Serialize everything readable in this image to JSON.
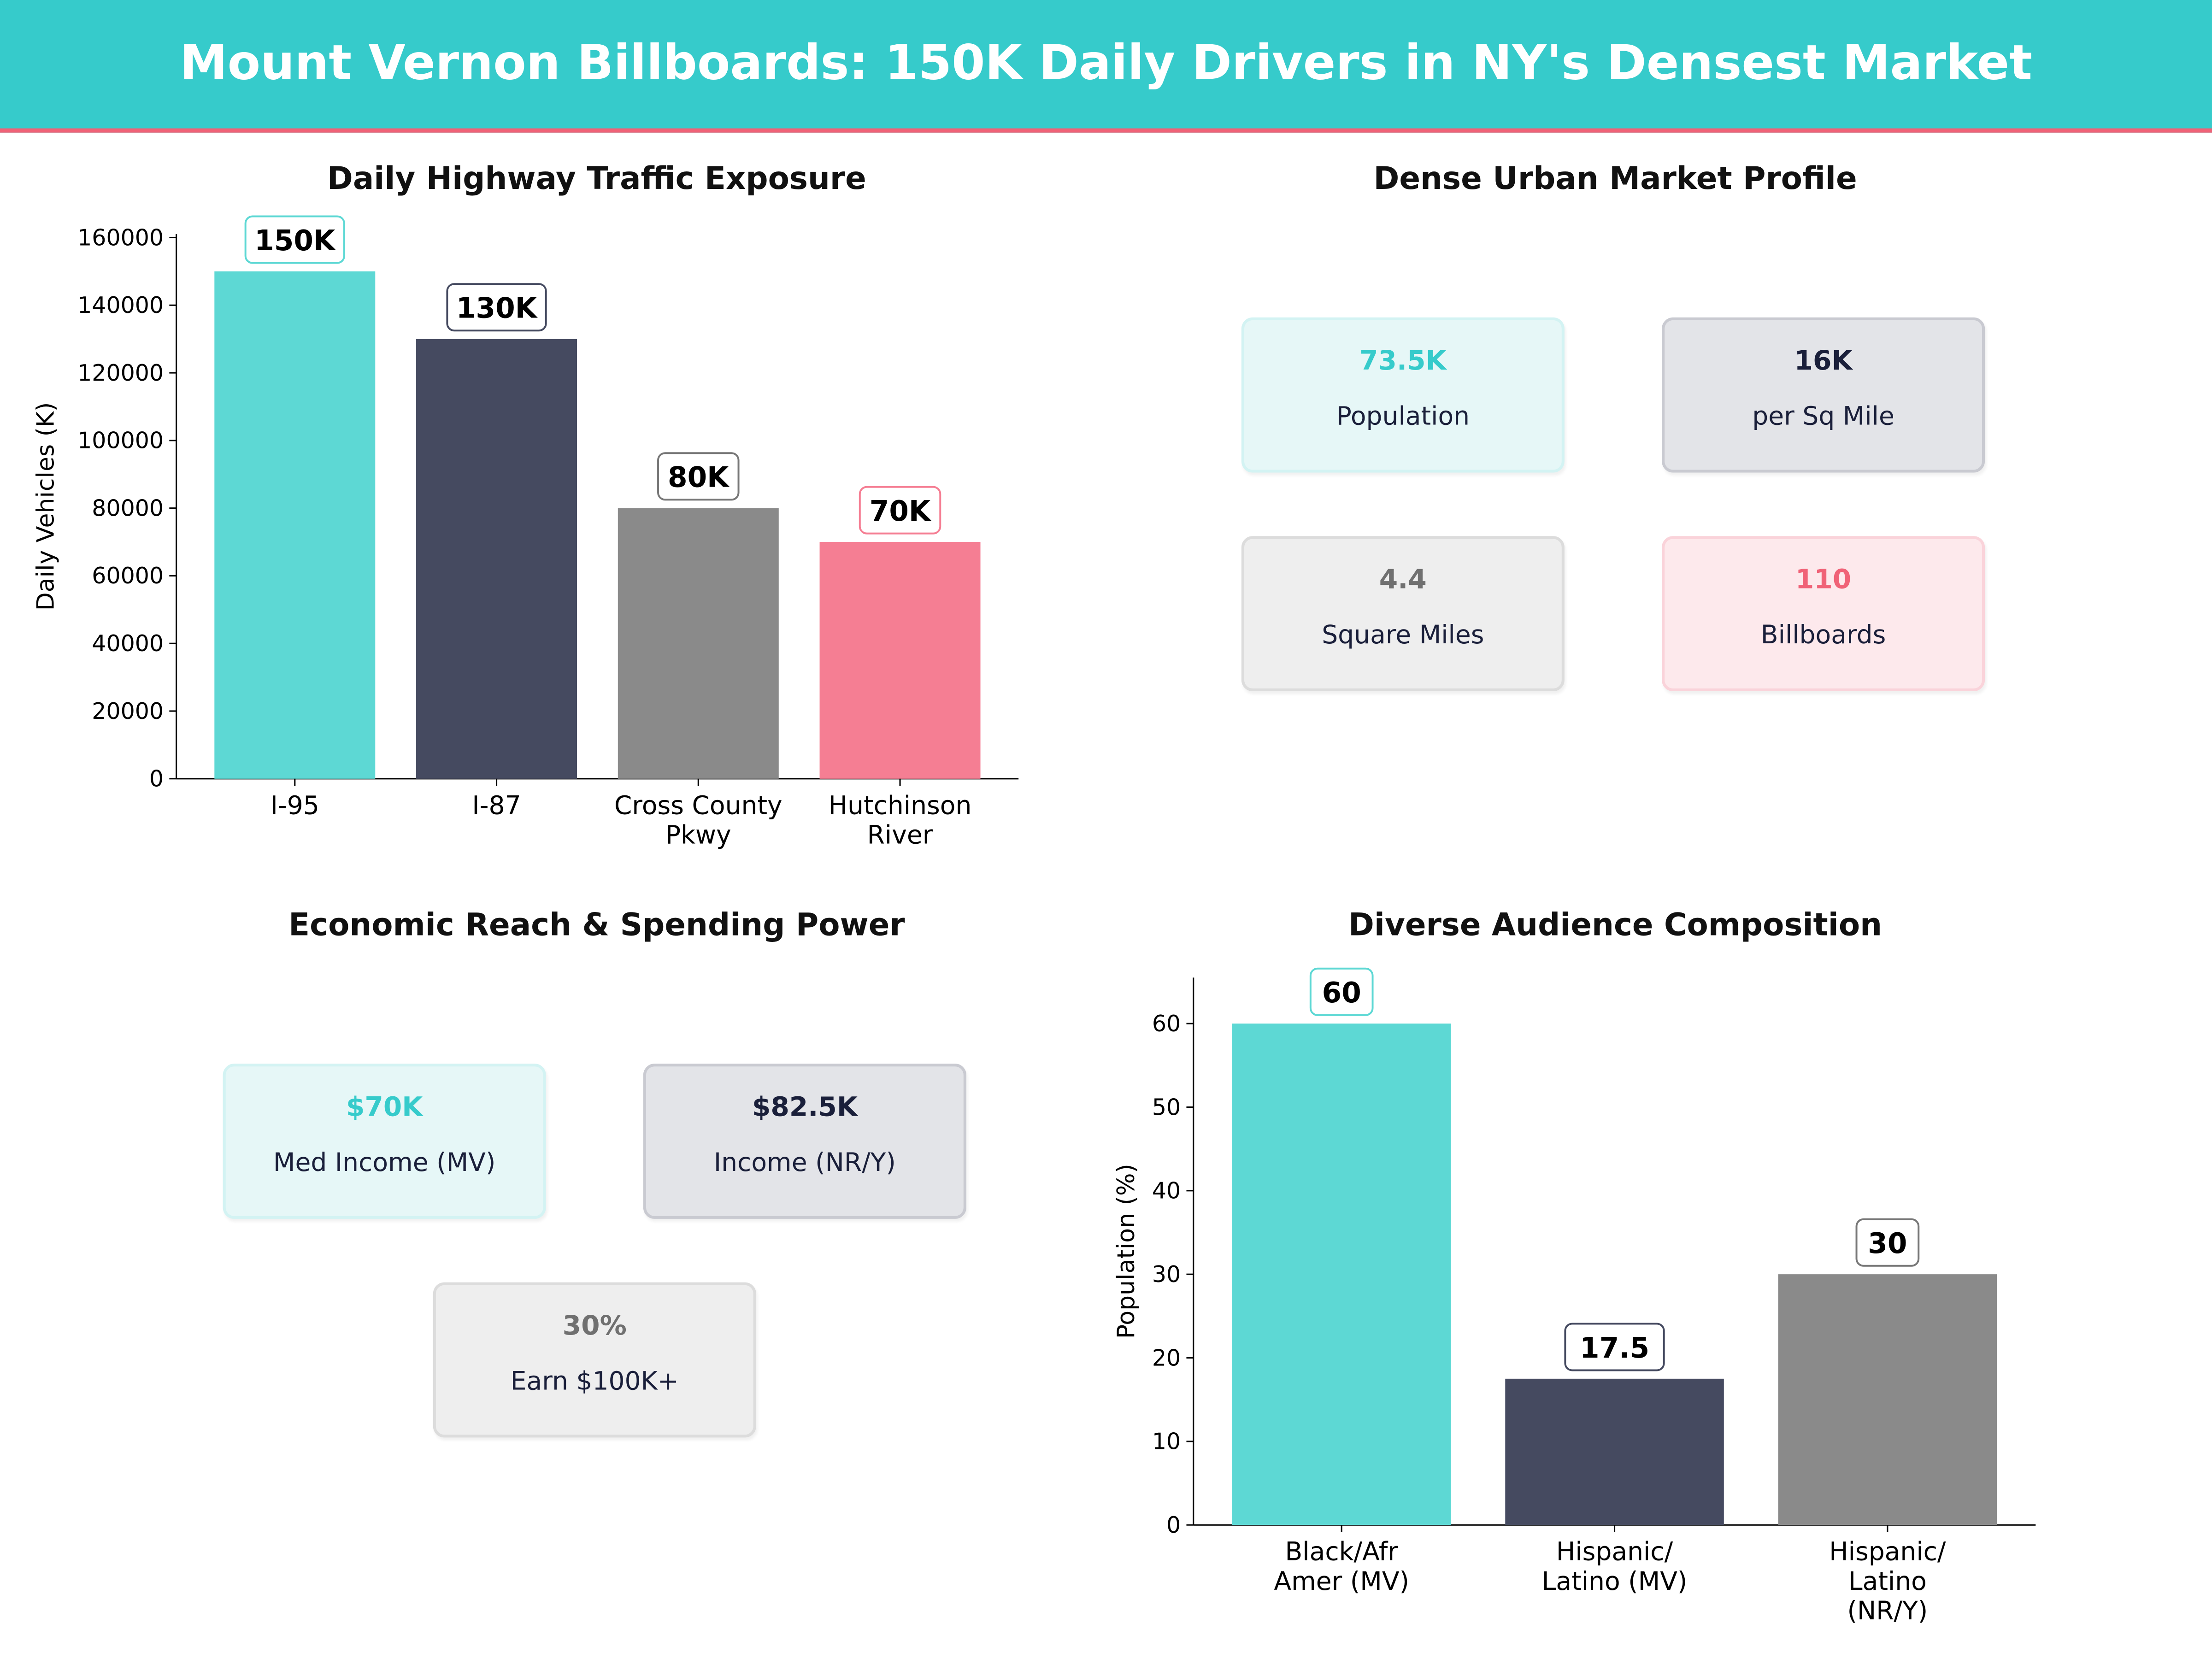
{
  "header": {
    "title": "Mount Vernon Billboards: 150K Daily Drivers in NY's Densest Market"
  },
  "colors": {
    "teal": "#5DD8D4",
    "navy": "#454A60",
    "gray": "#8A8A8A",
    "pink": "#F57E93",
    "header_bg": "#36CBCB",
    "header_rule": "#F06277"
  },
  "market_profile": {
    "title": "Dense Urban Market Profile",
    "cards": [
      {
        "value": "73.5K",
        "label": "Population",
        "theme": "teal"
      },
      {
        "value": "16K",
        "label": "per Sq Mile",
        "theme": "navy"
      },
      {
        "value": "4.4",
        "label": "Square Miles",
        "theme": "gray"
      },
      {
        "value": "110",
        "label": "Billboards",
        "theme": "pink"
      }
    ]
  },
  "economic_reach": {
    "title": "Economic Reach & Spending Power",
    "cards": [
      {
        "value": "$70K",
        "label": "Med Income (MV)",
        "theme": "teal"
      },
      {
        "value": "$82.5K",
        "label": "Income (NR/Y)",
        "theme": "navy"
      },
      {
        "value": "30%",
        "label": "Earn $100K+",
        "theme": "gray"
      }
    ]
  },
  "chart_data": [
    {
      "type": "bar",
      "title": "Daily Highway Traffic Exposure",
      "xlabel": "",
      "ylabel": "Daily Vehicles (K)",
      "categories": [
        [
          "I-95"
        ],
        [
          "I-87"
        ],
        [
          "Cross County",
          "Pkwy"
        ],
        [
          "Hutchinson",
          "River"
        ]
      ],
      "values": [
        150000,
        130000,
        80000,
        70000
      ],
      "data_labels": [
        "150K",
        "130K",
        "80K",
        "70K"
      ],
      "bar_colors": [
        "#5DD8D4",
        "#454A60",
        "#8A8A8A",
        "#F57E93"
      ],
      "yticks": [
        0,
        20000,
        40000,
        60000,
        80000,
        100000,
        120000,
        140000,
        160000
      ],
      "ylim": [
        0,
        161000
      ],
      "grid": false
    },
    {
      "type": "bar",
      "title": "Diverse Audience Composition",
      "xlabel": "",
      "ylabel": "Population (%)",
      "categories": [
        [
          "Black/Afr",
          "Amer (MV)"
        ],
        [
          "Hispanic/",
          "Latino (MV)"
        ],
        [
          "Hispanic/",
          "Latino",
          "(NR/Y)"
        ]
      ],
      "values": [
        60,
        17.5,
        30
      ],
      "data_labels": [
        "60",
        "17.5",
        "30"
      ],
      "bar_colors": [
        "#5DD8D4",
        "#454A60",
        "#8A8A8A"
      ],
      "yticks": [
        0,
        10,
        20,
        30,
        40,
        50,
        60
      ],
      "ylim": [
        0,
        65.5
      ],
      "grid": false
    }
  ]
}
